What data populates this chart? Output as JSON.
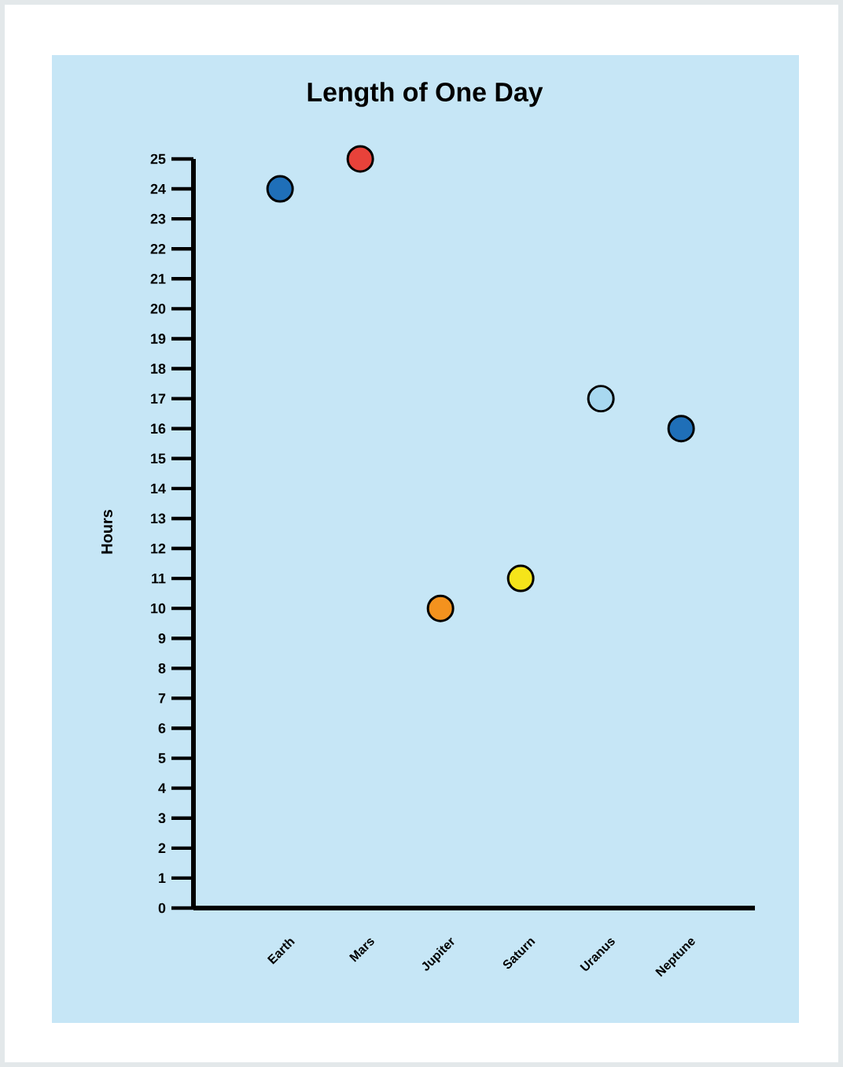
{
  "chart_data": {
    "type": "scatter",
    "title": "Length of One Day",
    "ylabel": "Hours",
    "categories": [
      "Earth",
      "Mars",
      "Jupiter",
      "Saturn",
      "Uranus",
      "Neptune"
    ],
    "values": [
      24,
      25,
      10,
      11,
      17,
      16
    ],
    "colors": [
      "#1f6fb8",
      "#e8423a",
      "#f4921e",
      "#f5e41a",
      "#a8d8f0",
      "#1f6fb8"
    ],
    "ylim": [
      0,
      25
    ],
    "yticks": [
      0,
      1,
      2,
      3,
      4,
      5,
      6,
      7,
      8,
      9,
      10,
      11,
      12,
      13,
      14,
      15,
      16,
      17,
      18,
      19,
      20,
      21,
      22,
      23,
      24,
      25
    ]
  }
}
